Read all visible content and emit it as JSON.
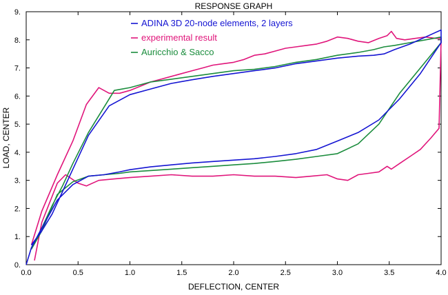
{
  "chart_data": {
    "type": "line",
    "title": "RESPONSE GRAPH",
    "xlabel": "DEFLECTION, CENTER",
    "ylabel": "LOAD, CENTER",
    "xlim": [
      0,
      4.0
    ],
    "ylim": [
      0,
      9.0
    ],
    "xticks": [
      "0.0",
      "0.5",
      "1.0",
      "1.5",
      "2.0",
      "2.5",
      "3.0",
      "3.5",
      "4.0"
    ],
    "yticks": [
      "0.",
      "1.",
      "2.",
      "3.",
      "4.",
      "5.",
      "6.",
      "7.",
      "8.",
      "9."
    ],
    "legend_position": "top-center",
    "series": [
      {
        "name": "ADINA 3D 20-node elements, 2 layers",
        "color": "#1414d2",
        "x": [
          0,
          0.05,
          0.15,
          0.3,
          0.45,
          0.6,
          0.75,
          0.9,
          1.0,
          1.2,
          1.4,
          1.6,
          1.8,
          2.0,
          2.2,
          2.4,
          2.6,
          2.8,
          3.0,
          3.2,
          3.4,
          3.6,
          3.8,
          4.0,
          4.0,
          3.85,
          3.7,
          3.55,
          3.45,
          3.35,
          3.2,
          3.0,
          2.8,
          2.6,
          2.4,
          2.2,
          2.0,
          1.8,
          1.6,
          1.4,
          1.2,
          1.0,
          0.8,
          0.6,
          0.45,
          0.35,
          0.25,
          0.15,
          0.05
        ],
        "y": [
          0,
          0.6,
          1.3,
          2.3,
          2.85,
          3.15,
          3.2,
          3.3,
          3.38,
          3.48,
          3.55,
          3.62,
          3.67,
          3.72,
          3.77,
          3.85,
          3.95,
          4.1,
          4.4,
          4.7,
          5.15,
          5.9,
          6.8,
          7.9,
          8.35,
          8.1,
          7.85,
          7.65,
          7.5,
          7.45,
          7.42,
          7.35,
          7.25,
          7.15,
          7.0,
          6.9,
          6.8,
          6.7,
          6.58,
          6.45,
          6.25,
          6.05,
          5.65,
          4.6,
          3.4,
          2.6,
          1.8,
          1.2,
          0.7
        ]
      },
      {
        "name": "experimental result",
        "color": "#e0147a",
        "x": [
          0.08,
          0.15,
          0.3,
          0.38,
          0.5,
          0.58,
          0.7,
          0.85,
          1.0,
          1.2,
          1.4,
          1.6,
          1.8,
          2.0,
          2.2,
          2.4,
          2.6,
          2.75,
          2.9,
          3.0,
          3.1,
          3.2,
          3.3,
          3.4,
          3.48,
          3.52,
          3.6,
          3.72,
          3.8,
          3.9,
          3.98,
          4.0,
          4.0,
          3.95,
          3.85,
          3.75,
          3.65,
          3.57,
          3.52,
          3.48,
          3.4,
          3.3,
          3.2,
          3.1,
          3.0,
          2.9,
          2.8,
          2.7,
          2.6,
          2.5,
          2.4,
          2.3,
          2.2,
          2.1,
          2.0,
          1.9,
          1.8,
          1.7,
          1.6,
          1.5,
          1.4,
          1.3,
          1.2,
          1.1,
          1.0,
          0.9,
          0.8,
          0.7,
          0.58,
          0.45,
          0.3,
          0.15,
          0.05
        ],
        "y": [
          0.15,
          1.5,
          2.9,
          3.2,
          2.9,
          2.8,
          3.0,
          3.05,
          3.1,
          3.15,
          3.2,
          3.15,
          3.15,
          3.2,
          3.15,
          3.15,
          3.1,
          3.15,
          3.2,
          3.05,
          3.0,
          3.2,
          3.25,
          3.3,
          3.5,
          3.4,
          3.6,
          3.9,
          4.1,
          4.5,
          4.85,
          8.0,
          8.05,
          8.05,
          8.1,
          8.05,
          8.0,
          8.05,
          8.3,
          8.15,
          8.05,
          7.9,
          7.95,
          8.05,
          8.1,
          7.95,
          7.85,
          7.8,
          7.75,
          7.7,
          7.6,
          7.5,
          7.45,
          7.3,
          7.2,
          7.15,
          7.1,
          7.0,
          6.9,
          6.8,
          6.7,
          6.6,
          6.5,
          6.35,
          6.2,
          6.1,
          6.1,
          6.3,
          5.7,
          4.4,
          3.2,
          1.9,
          0.7
        ]
      },
      {
        "name": "Auricchio & Sacco",
        "color": "#1a8c3c",
        "x": [
          0.05,
          0.15,
          0.3,
          0.45,
          0.6,
          0.75,
          0.9,
          1.0,
          1.2,
          1.4,
          1.6,
          1.8,
          2.0,
          2.2,
          2.4,
          2.6,
          2.8,
          3.0,
          3.2,
          3.4,
          3.6,
          3.8,
          4.0,
          4.0,
          3.85,
          3.7,
          3.55,
          3.45,
          3.35,
          3.2,
          3.0,
          2.8,
          2.6,
          2.4,
          2.2,
          2.0,
          1.8,
          1.6,
          1.4,
          1.2,
          1.0,
          0.85,
          0.6,
          0.45,
          0.35,
          0.25,
          0.15,
          0.05
        ],
        "y": [
          0.55,
          1.2,
          2.5,
          2.95,
          3.15,
          3.2,
          3.25,
          3.3,
          3.35,
          3.4,
          3.45,
          3.5,
          3.55,
          3.6,
          3.67,
          3.75,
          3.85,
          3.95,
          4.3,
          5.0,
          6.1,
          7.0,
          7.9,
          8.1,
          8.0,
          7.9,
          7.8,
          7.75,
          7.65,
          7.55,
          7.45,
          7.3,
          7.2,
          7.05,
          6.95,
          6.9,
          6.8,
          6.7,
          6.6,
          6.5,
          6.3,
          6.2,
          4.7,
          3.6,
          2.8,
          2.1,
          1.3,
          0.6
        ]
      }
    ]
  }
}
